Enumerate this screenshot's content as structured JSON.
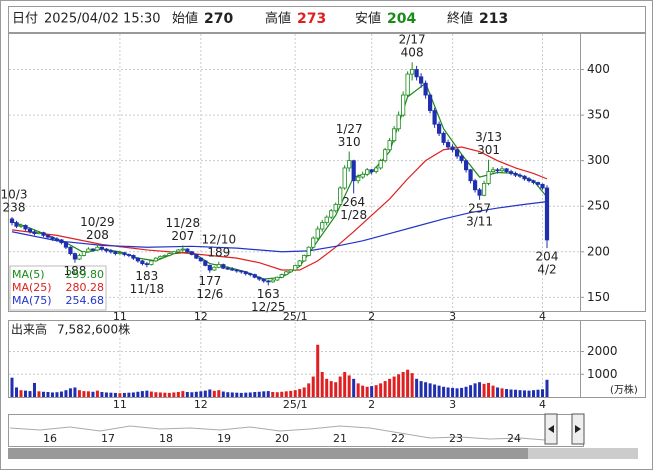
{
  "header": {
    "date_label": "日付",
    "datetime": "2025/04/02 15:30",
    "open_label": "始値",
    "open": 270,
    "high_label": "高値",
    "high": 273,
    "low_label": "安値",
    "low": 204,
    "close_label": "終値",
    "close": 213
  },
  "chart_data": [
    {
      "type": "candlestick",
      "up_color": "#1a8a1a",
      "down_color": "#1f2fb0",
      "grid": true,
      "xlim": [
        0,
        119
      ],
      "ylim": [
        135,
        439
      ],
      "yticks": [
        150,
        200,
        250,
        300,
        350,
        400
      ],
      "xticks": [
        {
          "value": 24,
          "label": "11"
        },
        {
          "value": 42,
          "label": "12"
        },
        {
          "value": 63,
          "label": "25/1"
        },
        {
          "value": 80,
          "label": "2"
        },
        {
          "value": 98,
          "label": "3"
        },
        {
          "value": 118,
          "label": "4"
        }
      ],
      "ohlc": [
        [
          236,
          238,
          229,
          232
        ],
        [
          232,
          234,
          226,
          228
        ],
        [
          228,
          231,
          226,
          229
        ],
        [
          229,
          230,
          223,
          225
        ],
        [
          225,
          226,
          220,
          222
        ],
        [
          222,
          224,
          218,
          220
        ],
        [
          220,
          223,
          219,
          221
        ],
        [
          221,
          222,
          216,
          218
        ],
        [
          218,
          219,
          214,
          216
        ],
        [
          216,
          217,
          212,
          214
        ],
        [
          214,
          216,
          211,
          213
        ],
        [
          213,
          214,
          208,
          210
        ],
        [
          210,
          211,
          203,
          205
        ],
        [
          205,
          206,
          196,
          198
        ],
        [
          198,
          199,
          188,
          192
        ],
        [
          192,
          198,
          191,
          196
        ],
        [
          196,
          201,
          195,
          200
        ],
        [
          200,
          205,
          199,
          203
        ],
        [
          203,
          204,
          200,
          202
        ],
        [
          202,
          208,
          201,
          205
        ],
        [
          205,
          206,
          201,
          203
        ],
        [
          203,
          204,
          199,
          201
        ],
        [
          201,
          203,
          198,
          200
        ],
        [
          200,
          201,
          196,
          198
        ],
        [
          198,
          201,
          197,
          199
        ],
        [
          199,
          200,
          195,
          197
        ],
        [
          197,
          198,
          194,
          196
        ],
        [
          196,
          197,
          191,
          193
        ],
        [
          193,
          194,
          188,
          190
        ],
        [
          190,
          191,
          185,
          187
        ],
        [
          187,
          189,
          183,
          186
        ],
        [
          186,
          191,
          185,
          190
        ],
        [
          190,
          194,
          189,
          193
        ],
        [
          193,
          196,
          192,
          195
        ],
        [
          195,
          197,
          194,
          196
        ],
        [
          196,
          199,
          195,
          198
        ],
        [
          198,
          201,
          197,
          200
        ],
        [
          200,
          203,
          199,
          202
        ],
        [
          202,
          207,
          200,
          203
        ],
        [
          203,
          204,
          199,
          200
        ],
        [
          200,
          201,
          196,
          197
        ],
        [
          197,
          198,
          192,
          193
        ],
        [
          193,
          194,
          189,
          190
        ],
        [
          190,
          191,
          184,
          185
        ],
        [
          185,
          186,
          177,
          180
        ],
        [
          180,
          184,
          179,
          183
        ],
        [
          183,
          189,
          182,
          186
        ],
        [
          186,
          187,
          181,
          182
        ],
        [
          182,
          184,
          180,
          181
        ],
        [
          181,
          183,
          179,
          180
        ],
        [
          180,
          181,
          177,
          179
        ],
        [
          179,
          180,
          176,
          178
        ],
        [
          178,
          179,
          174,
          176
        ],
        [
          176,
          177,
          173,
          175
        ],
        [
          175,
          176,
          171,
          172
        ],
        [
          172,
          173,
          168,
          170
        ],
        [
          170,
          171,
          166,
          168
        ],
        [
          168,
          169,
          163,
          167
        ],
        [
          167,
          170,
          166,
          169
        ],
        [
          169,
          173,
          168,
          172
        ],
        [
          172,
          176,
          171,
          175
        ],
        [
          175,
          179,
          174,
          178
        ],
        [
          178,
          181,
          177,
          180
        ],
        [
          180,
          186,
          179,
          185
        ],
        [
          185,
          191,
          184,
          190
        ],
        [
          190,
          197,
          189,
          196
        ],
        [
          196,
          206,
          195,
          205
        ],
        [
          205,
          217,
          204,
          215
        ],
        [
          215,
          228,
          213,
          225
        ],
        [
          225,
          235,
          222,
          232
        ],
        [
          232,
          240,
          229,
          238
        ],
        [
          238,
          247,
          236,
          245
        ],
        [
          245,
          254,
          243,
          252
        ],
        [
          252,
          272,
          250,
          270
        ],
        [
          270,
          295,
          268,
          292
        ],
        [
          292,
          310,
          288,
          300
        ],
        [
          300,
          301,
          264,
          278
        ],
        [
          278,
          285,
          275,
          282
        ],
        [
          282,
          288,
          280,
          285
        ],
        [
          285,
          292,
          283,
          290
        ],
        [
          290,
          291,
          285,
          288
        ],
        [
          288,
          294,
          286,
          292
        ],
        [
          292,
          302,
          290,
          300
        ],
        [
          300,
          314,
          298,
          312
        ],
        [
          312,
          325,
          310,
          322
        ],
        [
          322,
          338,
          320,
          335
        ],
        [
          335,
          354,
          332,
          350
        ],
        [
          350,
          376,
          348,
          372
        ],
        [
          372,
          398,
          370,
          395
        ],
        [
          395,
          408,
          388,
          400
        ],
        [
          400,
          404,
          388,
          392
        ],
        [
          392,
          396,
          380,
          385
        ],
        [
          385,
          388,
          368,
          372
        ],
        [
          372,
          374,
          352,
          355
        ],
        [
          355,
          358,
          336,
          340
        ],
        [
          340,
          343,
          327,
          330
        ],
        [
          330,
          332,
          317,
          320
        ],
        [
          320,
          323,
          312,
          315
        ],
        [
          315,
          318,
          309,
          312
        ],
        [
          312,
          313,
          302,
          305
        ],
        [
          305,
          307,
          297,
          300
        ],
        [
          300,
          301,
          287,
          290
        ],
        [
          290,
          291,
          275,
          278
        ],
        [
          278,
          280,
          265,
          268
        ],
        [
          268,
          270,
          257,
          262
        ],
        [
          262,
          278,
          261,
          275
        ],
        [
          275,
          301,
          273,
          288
        ],
        [
          288,
          293,
          285,
          290
        ],
        [
          290,
          292,
          286,
          289
        ],
        [
          289,
          294,
          287,
          291
        ],
        [
          291,
          292,
          286,
          288
        ],
        [
          288,
          290,
          284,
          286
        ],
        [
          286,
          288,
          282,
          284
        ],
        [
          284,
          286,
          281,
          283
        ],
        [
          283,
          284,
          278,
          280
        ],
        [
          280,
          282,
          276,
          278
        ],
        [
          278,
          279,
          274,
          276
        ],
        [
          276,
          277,
          272,
          274
        ],
        [
          274,
          275,
          268,
          270
        ],
        [
          270,
          273,
          204,
          213
        ]
      ],
      "series": [
        {
          "name": "MA(5)",
          "legend_value": "259.80",
          "color": "#1a8a1a",
          "x": [
            0,
            4,
            8,
            12,
            16,
            20,
            24,
            28,
            32,
            36,
            40,
            44,
            48,
            52,
            56,
            60,
            64,
            68,
            72,
            76,
            80,
            84,
            88,
            92,
            96,
            100,
            104,
            108,
            112,
            116,
            119
          ],
          "values": [
            233,
            226,
            218,
            210,
            199,
            203,
            200,
            193,
            190,
            198,
            200,
            187,
            183,
            178,
            170,
            172,
            184,
            212,
            240,
            282,
            287,
            310,
            370,
            385,
            335,
            307,
            282,
            287,
            286,
            278,
            260
          ]
        },
        {
          "name": "MA(25)",
          "legend_value": "280.28",
          "color": "#e02020",
          "x": [
            0,
            10,
            20,
            30,
            40,
            50,
            55,
            60,
            64,
            68,
            72,
            76,
            80,
            84,
            88,
            92,
            96,
            100,
            104,
            108,
            112,
            116,
            119
          ],
          "values": [
            224,
            218,
            208,
            202,
            198,
            193,
            188,
            180,
            180,
            190,
            205,
            222,
            240,
            258,
            280,
            300,
            312,
            315,
            310,
            300,
            292,
            286,
            280
          ]
        },
        {
          "name": "MA(75)",
          "legend_value": "254.68",
          "color": "#2233cc",
          "x": [
            0,
            10,
            20,
            30,
            40,
            50,
            60,
            66,
            72,
            78,
            84,
            90,
            96,
            102,
            108,
            114,
            119
          ],
          "values": [
            222,
            212,
            207,
            205,
            206,
            204,
            200,
            201,
            206,
            212,
            220,
            228,
            236,
            243,
            248,
            252,
            255
          ]
        }
      ],
      "annotations": [
        {
          "index": 0,
          "value": 238,
          "date": "10/3",
          "side": "high"
        },
        {
          "index": 14,
          "value": 188,
          "side": "low"
        },
        {
          "index": 19,
          "value": 208,
          "date": "10/29",
          "side": "high"
        },
        {
          "index": 30,
          "value": 183,
          "date": "11/18",
          "side": "low"
        },
        {
          "index": 38,
          "value": 207,
          "date": "11/28",
          "side": "high"
        },
        {
          "index": 44,
          "value": 177,
          "date": "12/6",
          "side": "low"
        },
        {
          "index": 46,
          "value": 189,
          "date": "12/10",
          "side": "high"
        },
        {
          "index": 57,
          "value": 163,
          "date": "12/25",
          "side": "low"
        },
        {
          "index": 75,
          "value": 310,
          "date": "1/27",
          "side": "high"
        },
        {
          "index": 76,
          "value": 264,
          "date": "1/28",
          "side": "low"
        },
        {
          "index": 89,
          "value": 408,
          "date": "2/17",
          "side": "high"
        },
        {
          "index": 104,
          "value": 257,
          "date": "3/11",
          "side": "low"
        },
        {
          "index": 106,
          "value": 301,
          "date": "3/13",
          "side": "high"
        },
        {
          "index": 119,
          "value": 204,
          "date": "4/2",
          "side": "low"
        }
      ]
    },
    {
      "type": "bar",
      "title": "出来高",
      "total": "7,582,600株",
      "unit": "(万株)",
      "up_color": "#e02020",
      "down_color": "#1f2fb0",
      "grid": true,
      "xlim": [
        0,
        119
      ],
      "ylim": [
        0,
        3300
      ],
      "yticks": [
        1000,
        2000
      ],
      "xticks": [
        {
          "value": 24,
          "label": "11"
        },
        {
          "value": 42,
          "label": "12"
        },
        {
          "value": 63,
          "label": "25/1"
        },
        {
          "value": 80,
          "label": "2"
        },
        {
          "value": 98,
          "label": "3"
        },
        {
          "value": 118,
          "label": "4"
        }
      ],
      "values": [
        850,
        420,
        300,
        280,
        260,
        620,
        250,
        230,
        220,
        200,
        210,
        240,
        300,
        380,
        420,
        300,
        260,
        250,
        230,
        280,
        220,
        200,
        190,
        180,
        170,
        180,
        190,
        200,
        230,
        260,
        280,
        240,
        210,
        200,
        190,
        180,
        200,
        220,
        260,
        220,
        210,
        230,
        250,
        280,
        330,
        270,
        300,
        240,
        210,
        200,
        190,
        180,
        190,
        200,
        220,
        230,
        250,
        260,
        220,
        210,
        230,
        250,
        270,
        300,
        350,
        420,
        600,
        900,
        2300,
        1100,
        800,
        700,
        650,
        900,
        1100,
        950,
        800,
        600,
        500,
        450,
        480,
        520,
        600,
        700,
        800,
        900,
        1000,
        1100,
        1200,
        1050,
        800,
        700,
        650,
        600,
        550,
        500,
        450,
        420,
        400,
        380,
        400,
        450,
        520,
        600,
        650,
        580,
        620,
        500,
        420,
        380,
        350,
        330,
        320,
        300,
        290,
        280,
        300,
        320,
        340,
        758
      ]
    }
  ],
  "navigator": {
    "labels": [
      "16",
      "17",
      "18",
      "19",
      "20",
      "21",
      "22",
      "23",
      "24"
    ]
  }
}
